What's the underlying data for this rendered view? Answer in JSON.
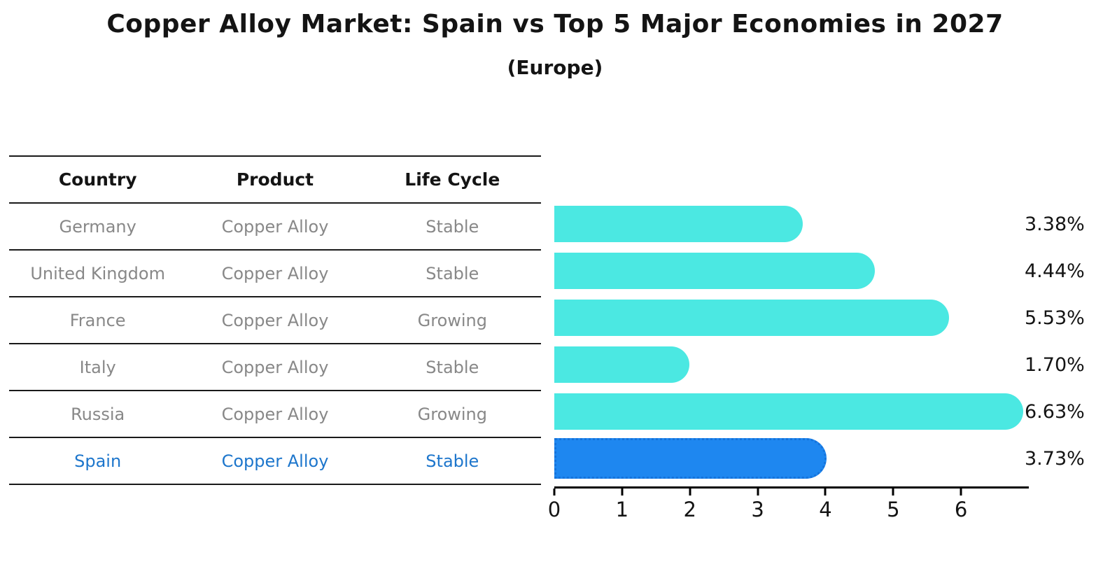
{
  "title": "Copper Alloy Market: Spain vs Top 5 Major Economies in 2027",
  "subtitle": "(Europe)",
  "table": {
    "headers": [
      "Country",
      "Product",
      "Life Cycle"
    ],
    "rows": [
      {
        "country": "Germany",
        "product": "Copper Alloy",
        "life_cycle": "Stable",
        "highlight": false
      },
      {
        "country": "United Kingdom",
        "product": "Copper Alloy",
        "life_cycle": "Stable",
        "highlight": false
      },
      {
        "country": "France",
        "product": "Copper Alloy",
        "life_cycle": "Growing",
        "highlight": false
      },
      {
        "country": "Italy",
        "product": "Copper Alloy",
        "life_cycle": "Stable",
        "highlight": false
      },
      {
        "country": "Russia",
        "product": "Copper Alloy",
        "life_cycle": "Growing",
        "highlight": false
      },
      {
        "country": "Spain",
        "product": "Copper Alloy",
        "life_cycle": "Stable",
        "highlight": true
      }
    ]
  },
  "chart_data": {
    "type": "bar",
    "orientation": "horizontal",
    "title": "Copper Alloy Market: Spain vs Top 5 Major Economies in 2027",
    "subtitle": "(Europe)",
    "categories": [
      "Germany",
      "United Kingdom",
      "France",
      "Italy",
      "Russia",
      "Spain"
    ],
    "values": [
      3.38,
      4.44,
      5.53,
      1.7,
      6.63,
      3.73
    ],
    "value_labels": [
      "3.38%",
      "4.44%",
      "5.53%",
      "1.70%",
      "6.63%",
      "3.73%"
    ],
    "highlight_category": "Spain",
    "xlabel": "",
    "ylabel": "",
    "xlim": [
      0,
      7
    ],
    "xticks": [
      0,
      1,
      2,
      3,
      4,
      5,
      6
    ],
    "grid": false,
    "legend": false,
    "bar_color": "#4be8e2",
    "highlight_bar_color": "#1e87f0",
    "highlight_border_color": "#1573db",
    "highlight_text_color": "#1d76cc",
    "text_color": "#141414",
    "muted_text_color": "#888888"
  }
}
